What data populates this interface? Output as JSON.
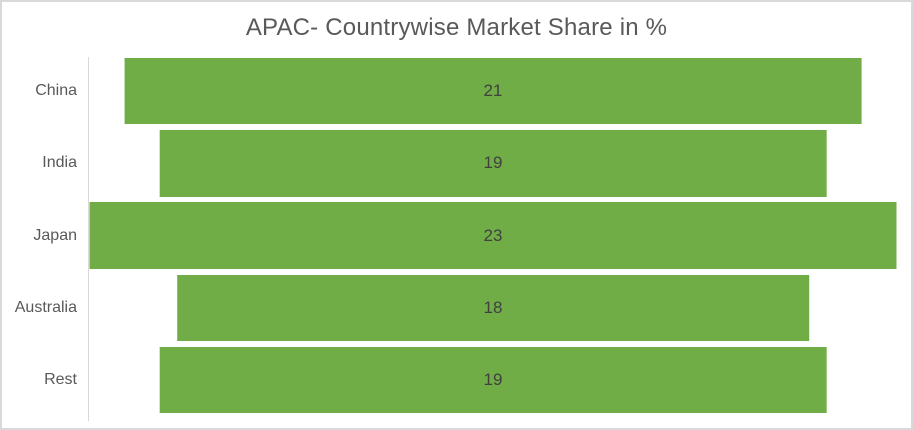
{
  "chart": {
    "title": "APAC- Countrywise Market Share in %"
  },
  "chart_data": {
    "type": "bar",
    "orientation": "horizontal-centered",
    "title": "APAC- Countrywise Market Share in %",
    "xlabel": "",
    "ylabel": "",
    "categories": [
      "China",
      "India",
      "Japan",
      "Australia",
      "Rest"
    ],
    "values": [
      21,
      19,
      23,
      18,
      19
    ],
    "data_labels": true,
    "legend": "none",
    "grid": false,
    "value_axis_max": 23,
    "colors": {
      "bar_fill": "#70AD47",
      "title_text": "#595959",
      "category_text": "#595959",
      "data_label_text": "#404040",
      "axis_line": "#D9D9D9",
      "border": "#D9D9D9"
    }
  }
}
